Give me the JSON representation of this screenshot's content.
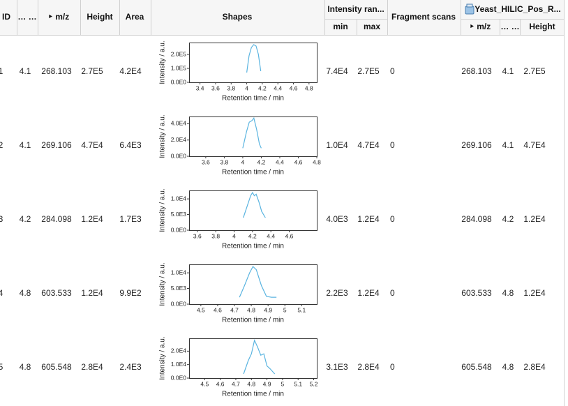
{
  "header": {
    "top": {
      "id": "ID",
      "rt": "… …",
      "mz": "‣ m/z",
      "height": "Height",
      "area": "Area",
      "shapes": "Shapes",
      "intensity_range": "Intensity ran...",
      "fragment_scans": "Fragment scans",
      "sample": "Yeast_HILIC_Pos_R..."
    },
    "sub": {
      "min": "min",
      "max": "max",
      "sample_mz": "‣ m/z",
      "sample_rt": "… …",
      "sample_height": "Height"
    }
  },
  "table": {
    "rows": [
      {
        "id": "1",
        "rt": "4.1",
        "mz": "268.103",
        "height": "2.7E5",
        "area": "4.2E4",
        "min": "7.4E4",
        "max": "2.7E5",
        "fragment_scans": "0",
        "sample_mz": "268.103",
        "sample_rt": "4.1",
        "sample_height": "2.7E5",
        "shape": {
          "y_label": "Intensity / a.u.",
          "x_label": "Retention time / min",
          "color": "#5ab4e0",
          "xlim": [
            3.26,
            4.9
          ],
          "ylim": [
            0,
            285000
          ],
          "xticks": [
            3.4,
            3.6,
            3.8,
            4.0,
            4.2,
            4.4,
            4.6,
            4.8
          ],
          "yticks": [
            {
              "value": 0,
              "label": "0.0E0"
            },
            {
              "value": 100000,
              "label": "1.0E5"
            },
            {
              "value": 200000,
              "label": "2.0E5"
            }
          ],
          "x": [
            4.0,
            4.03,
            4.06,
            4.09,
            4.12,
            4.15,
            4.18
          ],
          "values": [
            70000,
            190000,
            250000,
            270000,
            260000,
            200000,
            80000
          ]
        }
      },
      {
        "id": "2",
        "rt": "4.1",
        "mz": "269.106",
        "height": "4.7E4",
        "area": "6.4E3",
        "min": "1.0E4",
        "max": "4.7E4",
        "fragment_scans": "0",
        "sample_mz": "269.106",
        "sample_rt": "4.1",
        "sample_height": "4.7E4",
        "shape": {
          "y_label": "Intensity / a.u.",
          "x_label": "Retention time / min",
          "color": "#5ab4e0",
          "xlim": [
            3.42,
            4.8
          ],
          "ylim": [
            0,
            49000
          ],
          "xticks": [
            3.6,
            3.8,
            4.0,
            4.2,
            4.4,
            4.6,
            4.8
          ],
          "yticks": [
            {
              "value": 0,
              "label": "0.0E0"
            },
            {
              "value": 20000,
              "label": "2.0E4"
            },
            {
              "value": 40000,
              "label": "4.0E4"
            }
          ],
          "x": [
            4.0,
            4.04,
            4.07,
            4.1,
            4.12,
            4.15,
            4.18,
            4.2
          ],
          "values": [
            10000,
            30000,
            42000,
            44000,
            47000,
            33000,
            15000,
            10000
          ]
        }
      },
      {
        "id": "3",
        "rt": "4.2",
        "mz": "284.098",
        "height": "1.2E4",
        "area": "1.7E3",
        "min": "4.0E3",
        "max": "1.2E4",
        "fragment_scans": "0",
        "sample_mz": "284.098",
        "sample_rt": "4.2",
        "sample_height": "1.2E4",
        "shape": {
          "y_label": "Intensity / a.u.",
          "x_label": "Retention time / min",
          "color": "#5ab4e0",
          "xlim": [
            3.51,
            4.9
          ],
          "ylim": [
            0,
            12700
          ],
          "xticks": [
            3.6,
            3.8,
            4.0,
            4.2,
            4.4,
            4.6
          ],
          "yticks": [
            {
              "value": 0,
              "label": "0.0E0"
            },
            {
              "value": 5000,
              "label": "5.0E3"
            },
            {
              "value": 10000,
              "label": "1.0E4"
            }
          ],
          "x": [
            4.1,
            4.18,
            4.2,
            4.22,
            4.24,
            4.27,
            4.3,
            4.34
          ],
          "values": [
            4000,
            11000,
            12000,
            11000,
            11500,
            9000,
            6000,
            4000
          ]
        }
      },
      {
        "id": "4",
        "rt": "4.8",
        "mz": "603.533",
        "height": "1.2E4",
        "area": "9.9E2",
        "min": "2.2E3",
        "max": "1.2E4",
        "fragment_scans": "0",
        "sample_mz": "603.533",
        "sample_rt": "4.8",
        "sample_height": "1.2E4",
        "shape": {
          "y_label": "Intensity / a.u.",
          "x_label": "Retention time / min",
          "color": "#5ab4e0",
          "xlim": [
            4.43,
            5.19
          ],
          "ylim": [
            0,
            12700
          ],
          "xticks": [
            4.5,
            4.6,
            4.7,
            4.8,
            4.9,
            5.0,
            5.1
          ],
          "yticks": [
            {
              "value": 0,
              "label": "0.0E0"
            },
            {
              "value": 5000,
              "label": "5.0E3"
            },
            {
              "value": 10000,
              "label": "1.0E4"
            }
          ],
          "x": [
            4.73,
            4.76,
            4.79,
            4.81,
            4.83,
            4.86,
            4.89,
            4.92,
            4.95
          ],
          "values": [
            2200,
            6000,
            10000,
            12000,
            11000,
            6000,
            2500,
            2200,
            2200
          ]
        }
      },
      {
        "id": "5",
        "rt": "4.8",
        "mz": "605.548",
        "height": "2.8E4",
        "area": "2.4E3",
        "min": "3.1E3",
        "max": "2.8E4",
        "fragment_scans": "0",
        "sample_mz": "605.548",
        "sample_rt": "4.8",
        "sample_height": "2.8E4",
        "shape": {
          "y_label": "Intensity / a.u.",
          "x_label": "Retention time / min",
          "color": "#5ab4e0",
          "xlim": [
            4.4,
            5.22
          ],
          "ylim": [
            0,
            29500
          ],
          "xticks": [
            4.5,
            4.6,
            4.7,
            4.8,
            4.9,
            5.0,
            5.1,
            5.2
          ],
          "yticks": [
            {
              "value": 0,
              "label": "0.0E0"
            },
            {
              "value": 10000,
              "label": "1.0E4"
            },
            {
              "value": 20000,
              "label": "2.0E4"
            }
          ],
          "x": [
            4.75,
            4.78,
            4.8,
            4.82,
            4.84,
            4.86,
            4.88,
            4.9,
            4.92,
            4.95
          ],
          "values": [
            3100,
            13000,
            18000,
            28000,
            23000,
            17000,
            18000,
            9000,
            7000,
            3100
          ]
        }
      }
    ]
  }
}
